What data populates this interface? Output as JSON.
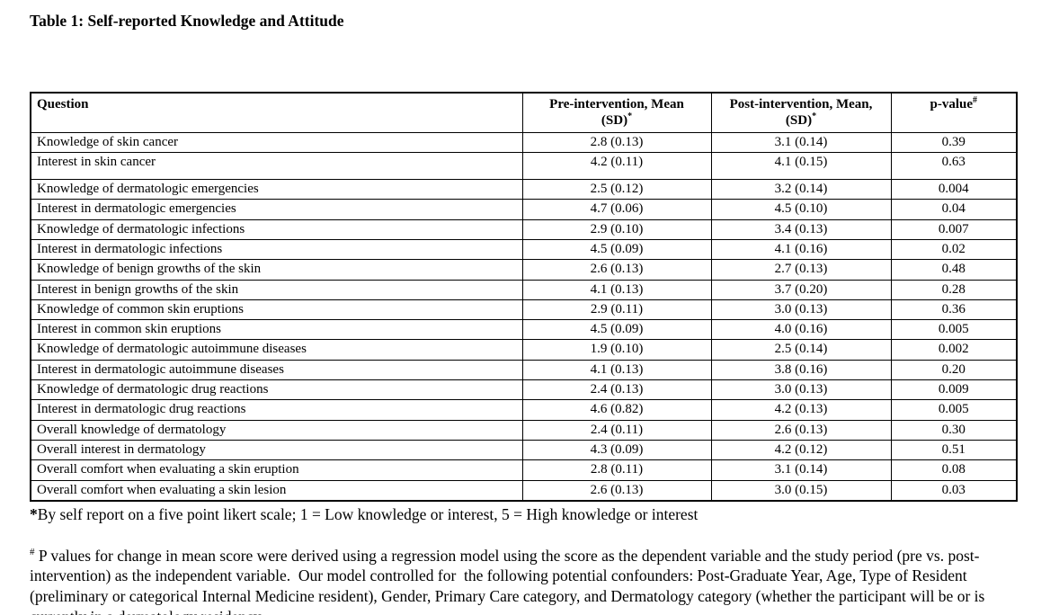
{
  "title": "Table 1: Self-reported Knowledge and Attitude",
  "table": {
    "headers": {
      "question": "Question",
      "pre_line1": "Pre-intervention, Mean",
      "pre_line2": "(SD)",
      "pre_sup": "*",
      "post_line1": "Post-intervention, Mean,",
      "post_line2": "(SD)",
      "post_sup": "*",
      "pvalue": "p-value",
      "pvalue_sup": "#"
    },
    "rows": [
      {
        "question": "Knowledge of skin cancer",
        "pre": "2.8 (0.13)",
        "post": "3.1 (0.14)",
        "p": "0.39"
      },
      {
        "question": "Interest in skin cancer",
        "pre": "4.2 (0.11)",
        "post": "4.1 (0.15)",
        "p": "0.63"
      },
      {
        "question": "Knowledge of dermatologic emergencies",
        "pre": "2.5 (0.12)",
        "post": "3.2 (0.14)",
        "p": "0.004"
      },
      {
        "question": "Interest in dermatologic emergencies",
        "pre": "4.7 (0.06)",
        "post": "4.5 (0.10)",
        "p": "0.04"
      },
      {
        "question": "Knowledge of dermatologic infections",
        "pre": "2.9 (0.10)",
        "post": "3.4 (0.13)",
        "p": "0.007"
      },
      {
        "question": "Interest in dermatologic infections",
        "pre": "4.5 (0.09)",
        "post": "4.1 (0.16)",
        "p": "0.02"
      },
      {
        "question": "Knowledge of benign growths of the skin",
        "pre": "2.6 (0.13)",
        "post": "2.7 (0.13)",
        "p": "0.48"
      },
      {
        "question": "Interest in benign growths of the skin",
        "pre": "4.1 (0.13)",
        "post": "3.7 (0.20)",
        "p": "0.28"
      },
      {
        "question": "Knowledge of common skin eruptions",
        "pre": "2.9 (0.11)",
        "post": "3.0 (0.13)",
        "p": "0.36"
      },
      {
        "question": "Interest in common skin eruptions",
        "pre": "4.5 (0.09)",
        "post": "4.0 (0.16)",
        "p": "0.005"
      },
      {
        "question": "Knowledge of dermatologic autoimmune diseases",
        "pre": "1.9 (0.10)",
        "post": "2.5 (0.14)",
        "p": "0.002"
      },
      {
        "question": "Interest in dermatologic autoimmune diseases",
        "pre": "4.1 (0.13)",
        "post": "3.8 (0.16)",
        "p": "0.20"
      },
      {
        "question": "Knowledge of dermatologic drug reactions",
        "pre": "2.4 (0.13)",
        "post": "3.0 (0.13)",
        "p": "0.009"
      },
      {
        "question": "Interest in dermatologic drug reactions",
        "pre": "4.6 (0.82)",
        "post": "4.2 (0.13)",
        "p": "0.005"
      },
      {
        "question": "Overall knowledge of dermatology",
        "pre": "2.4 (0.11)",
        "post": "2.6 (0.13)",
        "p": "0.30"
      },
      {
        "question": "Overall interest in dermatology",
        "pre": "4.3 (0.09)",
        "post": "4.2 (0.12)",
        "p": "0.51"
      },
      {
        "question": "Overall comfort when evaluating a skin eruption",
        "pre": "2.8 (0.11)",
        "post": "3.1 (0.14)",
        "p": "0.08"
      },
      {
        "question": "Overall comfort when evaluating a skin lesion",
        "pre": "2.6 (0.13)",
        "post": "3.0 (0.15)",
        "p": "0.03"
      }
    ]
  },
  "footnotes": {
    "likert": {
      "marker": "*",
      "text": "By self report on a five point likert scale; 1 = Low knowledge or interest, 5 = High knowledge or interest"
    },
    "pvalue": {
      "marker": "#",
      "text": " P values for change in mean score were derived using a regression model using the score as the dependent variable and the study period (pre vs. post-intervention) as the independent variable.  Our model controlled for  the following potential confounders: Post-Graduate Year, Age, Type of Resident (preliminary or categorical Internal Medicine resident), Gender, Primary Care category, and Dermatology category (whether the participant will be or is currently in a dermatology residency."
    }
  }
}
